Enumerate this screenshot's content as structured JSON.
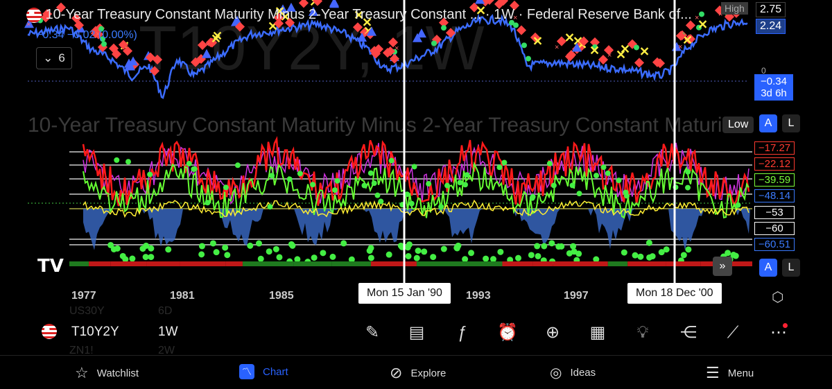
{
  "header": {
    "title": "10-Year Treasury Constant Maturity Minus 2-Year Treasury Constant ... · 1W · Federal Reserve Bank of...",
    "change": "−0.34  −0.02 (0.00%)",
    "collapse_count": "6",
    "high_label": "High",
    "low_label": "Low",
    "watermark_title": "10-Year Treasury Constant Maturity Minus 2-Year Treasury Constant Maturit"
  },
  "price_axis": {
    "high_value": "2.75",
    "top_value": "2.24",
    "zero_tick": "0",
    "current_value": "−0.34",
    "countdown": "3d 6h"
  },
  "indicator_axis": {
    "labels": [
      {
        "text": "−17.27",
        "color": "#ff3b30"
      },
      {
        "text": "−22.12",
        "color": "#ff3b30"
      },
      {
        "text": "−39.59",
        "color": "#7cff3a"
      },
      {
        "text": "−48.14",
        "color": "#3b7bff"
      },
      {
        "text": "−53",
        "color": "#ffffff"
      },
      {
        "text": "−60",
        "color": "#ffffff"
      },
      {
        "text": "−60.51",
        "color": "#3b7bff"
      }
    ]
  },
  "pane_buttons": {
    "auto": "A",
    "log": "L",
    "expand": "»"
  },
  "time_axis": {
    "years": [
      "1977",
      "1981",
      "1985",
      "1993",
      "1997"
    ],
    "crosshair_1": "Mon 15 Jan '90",
    "crosshair_2": "Mon 18 Dec '00"
  },
  "symbol_bar": {
    "symbol": "T10Y2Y",
    "interval": "1W",
    "ghost_top_symbol": "US30Y",
    "ghost_top_interval": "6D",
    "ghost_bottom_symbol": "ZN1!",
    "ghost_bottom_interval": "2W"
  },
  "tools": [
    "draw-icon",
    "notes-icon",
    "indicator-icon",
    "alert-icon",
    "add-icon",
    "layout-icon",
    "ideas-bulb-icon",
    "share-icon",
    "trend-icon",
    "more-icon"
  ],
  "nav": {
    "watchlist": "Watchlist",
    "chart": "Chart",
    "explore": "Explore",
    "ideas": "Ideas",
    "menu": "Menu"
  },
  "colors": {
    "accent": "#2962ff",
    "price_line": "#3b6cff",
    "red_line": "#ff1a1a",
    "green_line": "#66ff33",
    "magenta_line": "#d033e0",
    "yellow_line": "#ffee33"
  }
}
